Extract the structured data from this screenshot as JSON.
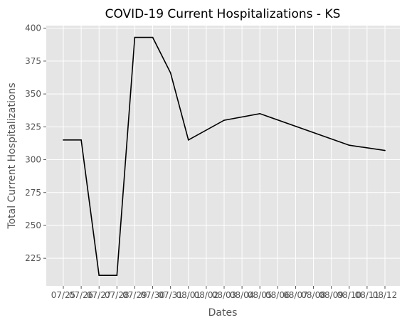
{
  "chart_data": {
    "type": "line",
    "title": "COVID-19 Current Hospitalizations - KS",
    "xlabel": "Dates",
    "ylabel": "Total Current Hospitalizations",
    "categories": [
      "07/25",
      "07/26",
      "07/27",
      "07/28",
      "07/29",
      "07/30",
      "07/31",
      "08/01",
      "08/02",
      "08/03",
      "08/04",
      "08/05",
      "08/06",
      "08/07",
      "08/08",
      "08/09",
      "08/10",
      "08/11",
      "08/12"
    ],
    "series": [
      {
        "points": [
          {
            "x": "07/25",
            "y": 315
          },
          {
            "x": "07/26",
            "y": 315
          },
          {
            "x": "07/27",
            "y": 212
          },
          {
            "x": "07/28",
            "y": 212
          },
          {
            "x": "07/29",
            "y": 393
          },
          {
            "x": "07/30",
            "y": 393
          },
          {
            "x": "07/31",
            "y": 366
          },
          {
            "x": "08/01",
            "y": 315
          },
          {
            "x": "08/03",
            "y": 330
          },
          {
            "x": "08/05",
            "y": 335
          },
          {
            "x": "08/10",
            "y": 311
          },
          {
            "x": "08/12",
            "y": 307
          }
        ]
      }
    ],
    "yticks": [
      225,
      250,
      275,
      300,
      325,
      350,
      375,
      400
    ],
    "ylim": [
      204,
      402
    ],
    "grid": true,
    "colors": {
      "background": "#e5e5e5",
      "grid": "#ffffff",
      "line": "#000000",
      "text": "#555555"
    }
  }
}
